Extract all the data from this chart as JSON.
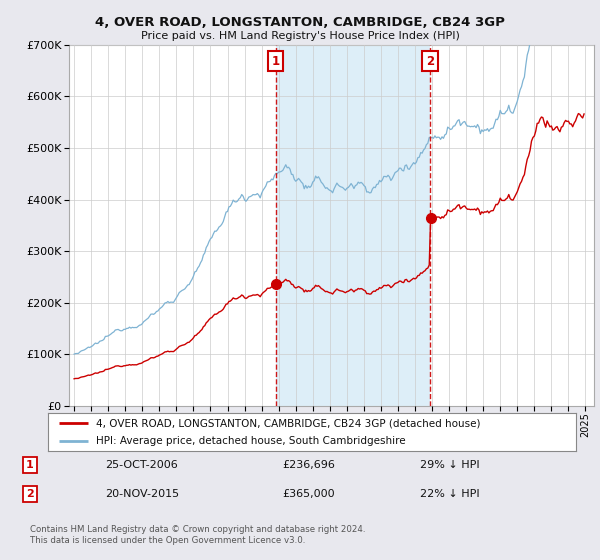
{
  "title": "4, OVER ROAD, LONGSTANTON, CAMBRIDGE, CB24 3GP",
  "subtitle": "Price paid vs. HM Land Registry's House Price Index (HPI)",
  "legend_label_red": "4, OVER ROAD, LONGSTANTON, CAMBRIDGE, CB24 3GP (detached house)",
  "legend_label_blue": "HPI: Average price, detached house, South Cambridgeshire",
  "annotation1_label": "1",
  "annotation1_date": "25-OCT-2006",
  "annotation1_price": "£236,696",
  "annotation1_hpi": "29% ↓ HPI",
  "annotation2_label": "2",
  "annotation2_date": "20-NOV-2015",
  "annotation2_price": "£365,000",
  "annotation2_hpi": "22% ↓ HPI",
  "footnote": "Contains HM Land Registry data © Crown copyright and database right 2024.\nThis data is licensed under the Open Government Licence v3.0.",
  "vline1_year": 2006.82,
  "vline2_year": 2015.88,
  "purchase1_year": 2006.82,
  "purchase1_price": 236696,
  "purchase2_year": 2015.88,
  "purchase2_price": 365000,
  "ylim": [
    0,
    700000
  ],
  "yticks": [
    0,
    100000,
    200000,
    300000,
    400000,
    500000,
    600000,
    700000
  ],
  "xlim_left": 1994.7,
  "xlim_right": 2025.5,
  "red_color": "#cc0000",
  "blue_color": "#7fb3d3",
  "blue_fill_color": "#ddeef8",
  "vline_color": "#cc0000",
  "background_color": "#e8e8ee",
  "plot_bg_color": "#ffffff",
  "grid_color": "#cccccc"
}
